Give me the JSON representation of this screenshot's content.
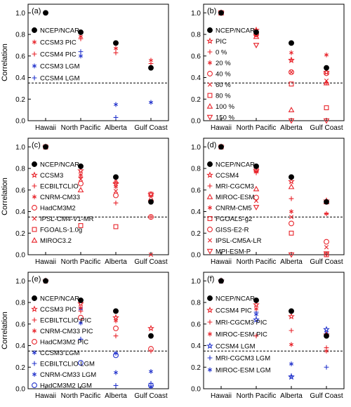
{
  "figure": {
    "ylabel": "Correlation",
    "categories": [
      "Hawaii",
      "North Pacific",
      "Alberta",
      "Gulf Coast"
    ],
    "yticks": [
      "0.0",
      "0.2",
      "0.4",
      "0.6",
      "0.8",
      "1.0"
    ]
  },
  "colors": {
    "black": "#000000",
    "red": "#e8232a",
    "blue": "#2233cc"
  },
  "chart_data": [
    {
      "panel": "(a)",
      "type": "scatter",
      "categories": [
        "Hawaii",
        "North Pacific",
        "Alberta",
        "Gulf Coast"
      ],
      "ylabel": "Correlation",
      "ylim": [
        0,
        1.08
      ],
      "reference_line": 0.35,
      "legend": "left",
      "series": [
        {
          "name": "NCEP/NCAR",
          "marker": "circle",
          "fill": true,
          "color": "black",
          "values": [
            1.0,
            0.82,
            0.72,
            0.49
          ]
        },
        {
          "name": "CCSM3 PIC",
          "marker": "asterisk",
          "color": "red",
          "values": [
            1.0,
            0.78,
            0.67,
            0.56
          ]
        },
        {
          "name": "CCSM4 PIC",
          "marker": "plus",
          "color": "red",
          "values": [
            1.0,
            0.76,
            0.63,
            0.53
          ]
        },
        {
          "name": "CCSM3 LGM",
          "marker": "asterisk",
          "color": "blue",
          "values": [
            null,
            0.6,
            0.15,
            0.17
          ]
        },
        {
          "name": "CCSM4 LGM",
          "marker": "plus",
          "color": "blue",
          "values": [
            null,
            0.64,
            0.03,
            null
          ]
        }
      ]
    },
    {
      "panel": "(b)",
      "type": "scatter",
      "categories": [
        "Hawaii",
        "North Pacific",
        "Alberta",
        "Gulf Coast"
      ],
      "ylabel": "",
      "ylim": [
        0,
        1.08
      ],
      "reference_line": 0.35,
      "legend": "left",
      "series": [
        {
          "name": "NCEP/NCAR",
          "marker": "circle",
          "fill": true,
          "color": "black",
          "values": [
            1.0,
            0.82,
            0.72,
            0.49
          ]
        },
        {
          "name": "PIC",
          "marker": "star",
          "color": "red",
          "values": [
            1.0,
            0.84,
            0.56,
            0.45
          ]
        },
        {
          "name": "0 %",
          "marker": "plus",
          "color": "red",
          "values": [
            1.0,
            0.83,
            0.57,
            0.35
          ]
        },
        {
          "name": "20 %",
          "marker": "asterisk",
          "color": "red",
          "values": [
            1.0,
            0.82,
            0.63,
            0.61
          ]
        },
        {
          "name": "40 %",
          "marker": "circle",
          "color": "red",
          "values": [
            1.0,
            0.8,
            0.45,
            0.44
          ]
        },
        {
          "name": "60 %",
          "marker": "cross",
          "color": "red",
          "values": [
            1.0,
            0.79,
            0.45,
            0.37
          ]
        },
        {
          "name": "80 %",
          "marker": "square",
          "color": "red",
          "values": [
            1.0,
            0.81,
            0.34,
            0.12
          ]
        },
        {
          "name": "100 %",
          "marker": "triangle",
          "color": "red",
          "values": [
            1.0,
            0.78,
            0.1,
            0.35
          ]
        },
        {
          "name": "150 %",
          "marker": "triangle-down",
          "color": "red",
          "values": [
            1.0,
            0.7,
            0.0,
            0.0
          ]
        }
      ]
    },
    {
      "panel": "(c)",
      "type": "scatter",
      "categories": [
        "Hawaii",
        "North Pacific",
        "Alberta",
        "Gulf Coast"
      ],
      "ylabel": "Correlation",
      "ylim": [
        0,
        1.08
      ],
      "reference_line": 0.35,
      "legend": "left",
      "series": [
        {
          "name": "NCEP/NCAR",
          "marker": "circle",
          "fill": true,
          "color": "black",
          "values": [
            1.0,
            0.82,
            0.72,
            0.49
          ]
        },
        {
          "name": "CCSM3",
          "marker": "star",
          "color": "red",
          "values": [
            1.0,
            0.78,
            0.66,
            0.56
          ]
        },
        {
          "name": "ECBILTCLIO",
          "marker": "plus",
          "color": "red",
          "values": [
            null,
            0.72,
            0.48,
            0.35
          ]
        },
        {
          "name": "CNRM-CM33",
          "marker": "asterisk",
          "color": "red",
          "values": [
            null,
            0.74,
            0.63,
            0.49
          ]
        },
        {
          "name": "HadCM3M2",
          "marker": "circle",
          "color": "red",
          "values": [
            null,
            0.66,
            0.55,
            0.35
          ]
        },
        {
          "name": "IPSL-CM4-V1-MR",
          "marker": "cross",
          "color": "red",
          "values": [
            null,
            0.7,
            0.59,
            0.0
          ]
        },
        {
          "name": "FGOALS-1.0g",
          "marker": "square",
          "color": "red",
          "values": [
            1.0,
            0.27,
            0.26,
            0.56
          ]
        },
        {
          "name": "MIROC3.2",
          "marker": "triangle",
          "color": "red",
          "values": [
            null,
            0.6,
            0.68,
            0.52
          ]
        }
      ]
    },
    {
      "panel": "(d)",
      "type": "scatter",
      "categories": [
        "Hawaii",
        "North Pacific",
        "Alberta",
        "Gulf Coast"
      ],
      "ylabel": "",
      "ylim": [
        0,
        1.08
      ],
      "reference_line": 0.35,
      "legend": "left",
      "series": [
        {
          "name": "NCEP/NCAR",
          "marker": "circle",
          "fill": true,
          "color": "black",
          "values": [
            1.0,
            0.82,
            0.72,
            0.49
          ]
        },
        {
          "name": "CCSM4",
          "marker": "star",
          "color": "red",
          "values": [
            1.0,
            0.78,
            0.68,
            0.5
          ]
        },
        {
          "name": "MRI-CGCM3",
          "marker": "plus",
          "color": "red",
          "values": [
            null,
            0.76,
            0.52,
            0.38
          ]
        },
        {
          "name": "MIROC-ESM",
          "marker": "triangle",
          "color": "red",
          "values": [
            null,
            0.61,
            0.63,
            0.49
          ]
        },
        {
          "name": "CNRM-CM5",
          "marker": "asterisk",
          "color": "red",
          "values": [
            null,
            0.77,
            0.4,
            0.38
          ]
        },
        {
          "name": "FGOALS-g2",
          "marker": "square",
          "color": "red",
          "values": [
            1.0,
            0.79,
            0.2,
            0.0
          ]
        },
        {
          "name": "GISS-E2-R",
          "marker": "circle",
          "color": "red",
          "values": [
            null,
            0.53,
            0.29,
            0.12
          ]
        },
        {
          "name": "IPSL-CM5A-LR",
          "marker": "cross",
          "color": "red",
          "values": [
            null,
            0.5,
            0.35,
            0.07
          ]
        },
        {
          "name": "MPI-ESM-P",
          "marker": "triangle-down",
          "color": "red",
          "values": [
            null,
            0.44,
            0.0,
            0.01
          ]
        }
      ]
    },
    {
      "panel": "(e)",
      "type": "scatter",
      "categories": [
        "Hawaii",
        "North Pacific",
        "Alberta",
        "Gulf Coast"
      ],
      "ylabel": "Correlation",
      "ylim": [
        0,
        1.08
      ],
      "reference_line": 0.35,
      "legend": "left",
      "series": [
        {
          "name": "NCEP/NCAR",
          "marker": "circle",
          "fill": true,
          "color": "black",
          "values": [
            1.0,
            0.82,
            0.72,
            0.49
          ]
        },
        {
          "name": "CCSM3 PIC",
          "marker": "star",
          "color": "red",
          "values": [
            1.0,
            0.79,
            0.66,
            0.56
          ]
        },
        {
          "name": "ECBILTCLIO PIC",
          "marker": "plus",
          "color": "red",
          "values": [
            null,
            0.72,
            0.49,
            0.35
          ]
        },
        {
          "name": "CNRM-CM33 PIC",
          "marker": "asterisk",
          "color": "red",
          "values": [
            null,
            0.75,
            0.63,
            0.49
          ]
        },
        {
          "name": "HadCM3M2 PIC",
          "marker": "circle",
          "color": "red",
          "values": [
            null,
            0.66,
            0.56,
            0.37
          ]
        },
        {
          "name": "CCSM3 LGM",
          "marker": "asterisk",
          "color": "blue",
          "values": [
            null,
            0.61,
            0.15,
            0.16
          ]
        },
        {
          "name": "ECBILTCLIO LGM",
          "marker": "plus",
          "color": "blue",
          "values": [
            null,
            0.46,
            0.03,
            0.05
          ]
        },
        {
          "name": "CNRM-CM33 LGM",
          "marker": "asterisk",
          "color": "blue",
          "values": [
            null,
            0.74,
            0.33,
            0.02
          ]
        },
        {
          "name": "HadCM3M2 LGM",
          "marker": "circle",
          "color": "blue",
          "values": [
            null,
            0.24,
            0.31,
            0.03
          ]
        }
      ]
    },
    {
      "panel": "(f)",
      "type": "scatter",
      "categories": [
        "Hawaii",
        "North Pacific",
        "Alberta",
        "Gulf Coast"
      ],
      "ylabel": "",
      "ylim": [
        0,
        1.08
      ],
      "reference_line": 0.35,
      "legend": "left",
      "series": [
        {
          "name": "NCEP/NCAR",
          "marker": "circle",
          "fill": true,
          "color": "black",
          "values": [
            1.0,
            0.82,
            0.72,
            0.49
          ]
        },
        {
          "name": "CCSM4 PIC",
          "marker": "star",
          "color": "red",
          "values": [
            1.0,
            0.78,
            0.67,
            0.5
          ]
        },
        {
          "name": "MRI-CGCM3 PIC",
          "marker": "plus",
          "color": "red",
          "values": [
            null,
            0.49,
            0.54,
            0.38
          ]
        },
        {
          "name": "MIROC-ESM PIC",
          "marker": "asterisk",
          "color": "red",
          "values": [
            null,
            0.74,
            0.41,
            0.35
          ]
        },
        {
          "name": "CCSM4 LGM",
          "marker": "star",
          "color": "blue",
          "values": [
            1.0,
            0.64,
            0.11,
            0.55
          ]
        },
        {
          "name": "MRI-CGCM3 LGM",
          "marker": "plus",
          "color": "blue",
          "values": [
            null,
            0.71,
            0.12,
            0.2
          ]
        },
        {
          "name": "MIROC-ESM LGM",
          "marker": "asterisk",
          "color": "blue",
          "values": [
            null,
            0.69,
            0.23,
            0.52
          ]
        }
      ]
    }
  ]
}
